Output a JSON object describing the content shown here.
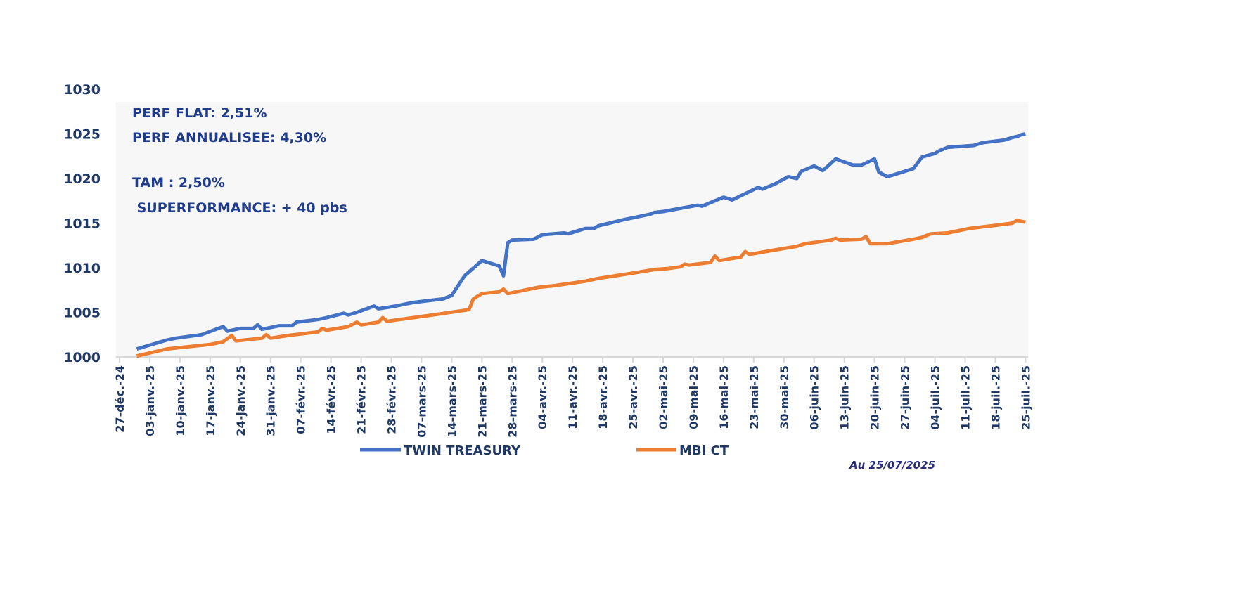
{
  "chart_data": {
    "type": "line",
    "title": "",
    "xlabel": "",
    "ylabel": "",
    "ylim": [
      1000,
      1030
    ],
    "yticks": [
      "1000",
      "1005",
      "1010",
      "1015",
      "1020",
      "1025",
      "1030"
    ],
    "x_unit": "days since 27-déc.-24",
    "x_tick_labels": [
      "27-déc.-24",
      "03-janv.-25",
      "10-janv.-25",
      "17-janv.-25",
      "24-janv.-25",
      "31-janv.-25",
      "07-févr.-25",
      "14-févr.-25",
      "21-févr.-25",
      "28-févr.-25",
      "07-mars-25",
      "14-mars-25",
      "21-mars-25",
      "28-mars-25",
      "04-avr.-25",
      "11-avr.-25",
      "18-avr.-25",
      "25-avr.-25",
      "02-mai-25",
      "09-mai-25",
      "16-mai-25",
      "23-mai-25",
      "30-mai-25",
      "06-juin-25",
      "13-juin-25",
      "20-juin-25",
      "27-juin-25",
      "04-juil.-25",
      "11-juil.-25",
      "18-juil.-25",
      "25-juil.-25"
    ],
    "grid": false,
    "legend_position": "bottom",
    "series": [
      {
        "name": "TWIN TREASURY",
        "color": "#4472C4",
        "points": [
          [
            4,
            1000.9
          ],
          [
            11,
            1001.9
          ],
          [
            13,
            1002.1
          ],
          [
            19,
            1002.5
          ],
          [
            24,
            1003.4
          ],
          [
            25,
            1002.9
          ],
          [
            28,
            1003.2
          ],
          [
            31,
            1003.2
          ],
          [
            32,
            1003.6
          ],
          [
            33,
            1003.1
          ],
          [
            37,
            1003.5
          ],
          [
            40,
            1003.5
          ],
          [
            41,
            1003.9
          ],
          [
            46,
            1004.2
          ],
          [
            48,
            1004.4
          ],
          [
            52,
            1004.9
          ],
          [
            53,
            1004.7
          ],
          [
            55,
            1005.0
          ],
          [
            59,
            1005.7
          ],
          [
            60,
            1005.4
          ],
          [
            64,
            1005.7
          ],
          [
            68,
            1006.1
          ],
          [
            75,
            1006.5
          ],
          [
            77,
            1006.9
          ],
          [
            80,
            1009.1
          ],
          [
            84,
            1010.8
          ],
          [
            88,
            1010.2
          ],
          [
            89,
            1009.1
          ],
          [
            90,
            1012.8
          ],
          [
            91,
            1013.1
          ],
          [
            96,
            1013.2
          ],
          [
            98,
            1013.7
          ],
          [
            103,
            1013.9
          ],
          [
            104,
            1013.8
          ],
          [
            108,
            1014.4
          ],
          [
            110,
            1014.4
          ],
          [
            111,
            1014.7
          ],
          [
            117,
            1015.4
          ],
          [
            119,
            1015.6
          ],
          [
            123,
            1016.0
          ],
          [
            124,
            1016.2
          ],
          [
            126,
            1016.3
          ],
          [
            134,
            1017.0
          ],
          [
            135,
            1016.9
          ],
          [
            140,
            1017.9
          ],
          [
            142,
            1017.6
          ],
          [
            145,
            1018.3
          ],
          [
            148,
            1019.0
          ],
          [
            149,
            1018.8
          ],
          [
            152,
            1019.4
          ],
          [
            155,
            1020.2
          ],
          [
            157,
            1020.0
          ],
          [
            158,
            1020.8
          ],
          [
            161,
            1021.4
          ],
          [
            163,
            1020.9
          ],
          [
            164,
            1021.3
          ],
          [
            166,
            1022.2
          ],
          [
            170,
            1021.5
          ],
          [
            172,
            1021.5
          ],
          [
            175,
            1022.2
          ],
          [
            176,
            1020.7
          ],
          [
            178,
            1020.2
          ],
          [
            180,
            1020.5
          ],
          [
            184,
            1021.1
          ],
          [
            186,
            1022.4
          ],
          [
            189,
            1022.8
          ],
          [
            190,
            1023.1
          ],
          [
            192,
            1023.5
          ],
          [
            198,
            1023.7
          ],
          [
            200,
            1024.0
          ],
          [
            205,
            1024.3
          ],
          [
            207,
            1024.6
          ],
          [
            208,
            1024.7
          ],
          [
            209,
            1024.9
          ],
          [
            210,
            1025.0
          ]
        ]
      },
      {
        "name": "MBI CT",
        "color": "#ED7D31",
        "points": [
          [
            4,
            1000.1
          ],
          [
            11,
            1000.9
          ],
          [
            21,
            1001.4
          ],
          [
            24,
            1001.7
          ],
          [
            26,
            1002.4
          ],
          [
            27,
            1001.8
          ],
          [
            33,
            1002.1
          ],
          [
            34,
            1002.5
          ],
          [
            35,
            1002.1
          ],
          [
            39,
            1002.4
          ],
          [
            46,
            1002.8
          ],
          [
            47,
            1003.2
          ],
          [
            48,
            1003.0
          ],
          [
            53,
            1003.4
          ],
          [
            55,
            1003.9
          ],
          [
            56,
            1003.6
          ],
          [
            60,
            1003.9
          ],
          [
            61,
            1004.4
          ],
          [
            62,
            1004.0
          ],
          [
            68,
            1004.4
          ],
          [
            74,
            1004.8
          ],
          [
            81,
            1005.3
          ],
          [
            82,
            1006.5
          ],
          [
            84,
            1007.1
          ],
          [
            88,
            1007.3
          ],
          [
            89,
            1007.6
          ],
          [
            90,
            1007.1
          ],
          [
            97,
            1007.8
          ],
          [
            101,
            1008.0
          ],
          [
            108,
            1008.5
          ],
          [
            111,
            1008.8
          ],
          [
            119,
            1009.4
          ],
          [
            124,
            1009.8
          ],
          [
            127,
            1009.9
          ],
          [
            130,
            1010.1
          ],
          [
            131,
            1010.4
          ],
          [
            132,
            1010.3
          ],
          [
            137,
            1010.6
          ],
          [
            138,
            1011.3
          ],
          [
            139,
            1010.8
          ],
          [
            144,
            1011.2
          ],
          [
            145,
            1011.8
          ],
          [
            146,
            1011.5
          ],
          [
            152,
            1012.0
          ],
          [
            157,
            1012.4
          ],
          [
            159,
            1012.7
          ],
          [
            165,
            1013.1
          ],
          [
            166,
            1013.3
          ],
          [
            167,
            1013.1
          ],
          [
            172,
            1013.2
          ],
          [
            173,
            1013.5
          ],
          [
            174,
            1012.7
          ],
          [
            178,
            1012.7
          ],
          [
            184,
            1013.2
          ],
          [
            186,
            1013.4
          ],
          [
            188,
            1013.8
          ],
          [
            192,
            1013.9
          ],
          [
            197,
            1014.4
          ],
          [
            204,
            1014.8
          ],
          [
            207,
            1015.0
          ],
          [
            208,
            1015.3
          ],
          [
            210,
            1015.1
          ]
        ]
      }
    ]
  },
  "annotations": {
    "perf_flat": "PERF FLAT: 2,51%",
    "perf_annualisee": "PERF ANNUALISEE: 4,30%",
    "tam": "TAM : 2,50%",
    "superformance": " SUPERFORMANCE: + 40 pbs"
  },
  "footer": {
    "as_of": "Au 25/07/2025"
  }
}
